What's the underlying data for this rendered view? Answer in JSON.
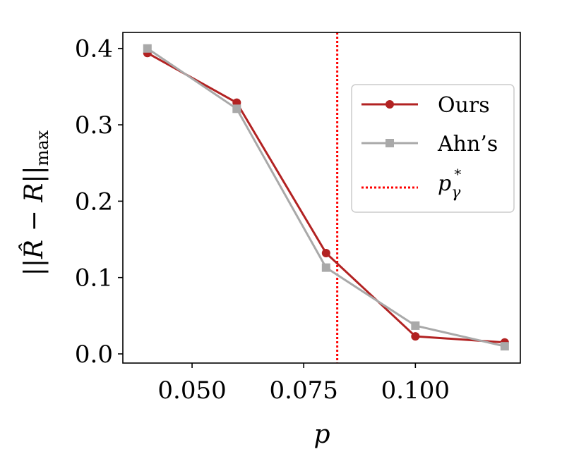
{
  "chart_data": {
    "type": "line",
    "x_label": "p",
    "y_label": {
      "lhs": "||",
      "hat": "R̂",
      "op": " − ",
      "var": "R",
      "rhs": "||",
      "sub": "max"
    },
    "xlim": [
      0.0345,
      0.1235
    ],
    "ylim": [
      -0.012,
      0.421
    ],
    "x_ticks": [
      0.05,
      0.075,
      0.1
    ],
    "x_tick_labels": [
      "0.050",
      "0.075",
      "0.100"
    ],
    "y_ticks": [
      0.0,
      0.1,
      0.2,
      0.3,
      0.4
    ],
    "y_tick_labels": [
      "0.0",
      "0.1",
      "0.2",
      "0.3",
      "0.4"
    ],
    "grid": false,
    "legend_position": "right",
    "series": [
      {
        "name": "Ours",
        "color": "#b22222",
        "marker": "circle",
        "x": [
          0.04,
          0.06,
          0.08,
          0.1,
          0.12
        ],
        "y": [
          0.394,
          0.329,
          0.132,
          0.023,
          0.015
        ]
      },
      {
        "name": "Ahn’s",
        "color": "#a9a9a9",
        "marker": "square",
        "x": [
          0.04,
          0.06,
          0.08,
          0.1,
          0.12
        ],
        "y": [
          0.4,
          0.321,
          0.113,
          0.037,
          0.01
        ]
      }
    ],
    "reference_line": {
      "label_var": "p",
      "label_sub": "γ",
      "label_sup": "*",
      "x": 0.0825,
      "color": "#ff0000",
      "style": "dotted"
    }
  }
}
